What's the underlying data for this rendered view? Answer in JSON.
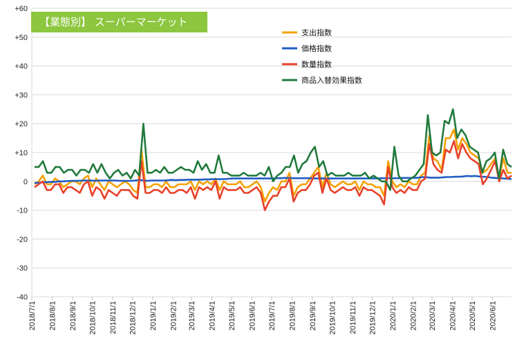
{
  "chart_data": {
    "type": "line",
    "title": "【業態別】 スーパーマーケット",
    "title_box_color": "#8dc63f",
    "ylim": [
      -40,
      60
    ],
    "yticks": [
      60,
      50,
      40,
      30,
      20,
      10,
      0,
      -10,
      -20,
      -30,
      -40
    ],
    "ytick_labels": [
      "+60",
      "+50",
      "+40",
      "+30",
      "+20",
      "+10",
      "0",
      "-10",
      "-20",
      "-30",
      "-40"
    ],
    "grid": true,
    "legend_position": "top-right",
    "x_start": "2018-07-01",
    "x_end": "2020-06-30",
    "xtick_labels": [
      "2018/7/1",
      "2018/8/1",
      "2018/9/1",
      "2018/10/1",
      "2018/11/1",
      "2018/12/1",
      "2019/1/1",
      "2019/2/1",
      "2019/3/1",
      "2019/4/1",
      "2019/5/1",
      "2019/6/1",
      "2019/7/1",
      "2019/8/1",
      "2019/9/1",
      "2019/10/1",
      "2019/11/1",
      "2019/12/1",
      "2020/1/1",
      "2020/2/1",
      "2020/3/1",
      "2020/4/1",
      "2020/5/1",
      "2020/6/1"
    ],
    "series": [
      {
        "name": "支出指数",
        "color": "#f5a000",
        "values": [
          -1,
          0,
          2,
          -1,
          -1,
          1,
          0,
          -2,
          -1,
          0,
          0,
          -1,
          1,
          2,
          -2,
          1,
          -1,
          -3,
          0,
          -1,
          -2,
          -1,
          0,
          -1,
          -3,
          -4,
          11,
          -2,
          -2,
          -1,
          -1,
          -2,
          0,
          -2,
          -2,
          -1,
          -1,
          -1,
          0,
          -3,
          0,
          -1,
          0,
          -1,
          1,
          -3,
          0,
          -1,
          -1,
          -1,
          0,
          -2,
          -2,
          -1,
          0,
          -2,
          -7,
          -4,
          -2,
          -3,
          0,
          0,
          3,
          -5,
          -2,
          -1,
          -1,
          1,
          3,
          5,
          -2,
          3,
          -1,
          -2,
          -1,
          0,
          -1,
          -1,
          0,
          -3,
          0,
          -1,
          -1,
          -2,
          -2,
          -5,
          7,
          0,
          -2,
          -1,
          -2,
          0,
          -1,
          -1,
          2,
          3,
          16,
          8,
          7,
          4,
          15,
          15,
          18,
          11,
          15,
          13,
          10,
          9,
          8,
          3,
          4,
          6,
          8,
          1,
          8,
          3,
          3
        ]
      },
      {
        "name": "価格指数",
        "color": "#1f5bc4",
        "values": [
          -0.5,
          -0.5,
          -0.3,
          -0.3,
          -0.2,
          -0.2,
          0,
          0,
          0.1,
          0.2,
          0.2,
          0.2,
          0.3,
          0.3,
          0.3,
          0.2,
          0.3,
          0.3,
          0.3,
          0.3,
          0.3,
          0.2,
          0.2,
          0.2,
          0.2,
          0.3,
          0.5,
          0.3,
          0.2,
          0.3,
          0.3,
          0.3,
          0.3,
          0.4,
          0.5,
          0.4,
          0.5,
          0.5,
          0.6,
          0.6,
          0.6,
          0.6,
          0.7,
          0.7,
          0.8,
          0.8,
          0.8,
          0.8,
          0.9,
          1,
          1,
          1,
          1,
          1,
          1,
          1,
          1,
          1,
          1,
          1,
          1.1,
          1.1,
          1.2,
          1.2,
          1.1,
          1.1,
          1.1,
          1.1,
          1.1,
          1,
          1,
          1,
          1,
          1,
          1,
          1,
          1,
          1,
          1,
          1,
          1,
          1,
          1,
          1,
          1,
          1,
          1.1,
          1.1,
          1.1,
          1.1,
          1.1,
          1.2,
          1.2,
          1.2,
          1.2,
          1.3,
          1.5,
          1.4,
          1.3,
          1.3,
          1.3,
          1.4,
          1.5,
          1.5,
          1.6,
          1.6,
          1.7,
          1.9,
          1.8,
          1.9,
          1.7,
          1.6,
          1.5,
          1.3,
          1.2,
          1.1,
          1,
          0.9,
          0.8
        ]
      },
      {
        "name": "数量指数",
        "color": "#e8402a",
        "values": [
          -2,
          -1,
          0,
          -3,
          -3,
          -1,
          -1,
          -4,
          -2,
          -2,
          -3,
          -4,
          -1,
          0,
          -5,
          -2,
          -3,
          -6,
          -3,
          -4,
          -5,
          -3,
          -3,
          -3,
          -5,
          -6,
          7,
          -4,
          -4,
          -3,
          -3,
          -4,
          -2,
          -4,
          -4,
          -3,
          -3,
          -4,
          -2,
          -6,
          -2,
          -3,
          -2,
          -3,
          0,
          -6,
          -2,
          -3,
          -3,
          -3,
          -2,
          -4,
          -4,
          -3,
          -2,
          -4,
          -10,
          -7,
          -5,
          -5,
          -2,
          -2,
          1,
          -7,
          -4,
          -3,
          -3,
          -1,
          2,
          3,
          -4,
          1,
          -3,
          -4,
          -3,
          -2,
          -3,
          -3,
          -2,
          -5,
          -2,
          -3,
          -3,
          -4,
          -5,
          -8,
          5,
          -2,
          -4,
          -3,
          -4,
          -2,
          -3,
          -3,
          0,
          1,
          13,
          6,
          4,
          3,
          11,
          10,
          14,
          8,
          13,
          10,
          8,
          7,
          6,
          -1,
          1,
          4,
          7,
          0,
          4,
          1,
          2
        ]
      },
      {
        "name": "商品入替効果指数",
        "color": "#217a3c",
        "values": [
          5,
          5,
          7,
          3,
          3,
          5,
          5,
          3,
          4,
          4,
          2,
          4,
          4,
          3,
          6,
          3,
          6,
          3,
          1,
          3,
          4,
          2,
          3,
          1,
          4,
          2,
          20,
          3,
          3,
          4,
          3,
          5,
          3,
          3,
          4,
          5,
          4,
          4,
          3,
          7,
          4,
          6,
          3,
          3,
          9,
          3,
          3,
          2,
          2,
          2,
          3,
          2,
          2,
          2,
          3,
          2,
          5,
          0,
          2,
          3,
          5,
          5,
          9,
          3,
          6,
          7,
          10,
          12,
          5,
          7,
          2,
          3,
          2,
          2,
          2,
          3,
          2,
          2,
          2,
          3,
          1,
          2,
          1,
          0,
          0,
          -3,
          12,
          2,
          0,
          0,
          1,
          2,
          4,
          6,
          23,
          10,
          9,
          10,
          21,
          20,
          25,
          15,
          18,
          16,
          12,
          11,
          10,
          3,
          7,
          8,
          10,
          1,
          11,
          6,
          5
        ]
      }
    ]
  }
}
